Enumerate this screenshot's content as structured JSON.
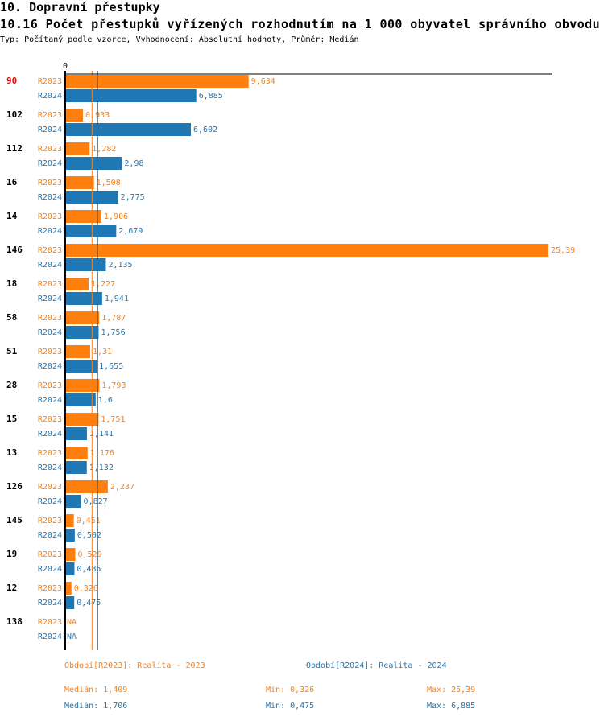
{
  "header": {
    "section": "10. Dopravní přestupky",
    "title": "10.16 Počet přestupků vyřízených rozhodnutím na 1 000 obyvatel správního obvodu",
    "subtitle": "Typ: Počítaný podle vzorce, Vyhodnocení: Absolutní hodnoty, Průměr: Medián"
  },
  "colors": {
    "r2023": "#ff7f0e",
    "r2024": "#1f77b4",
    "highlight": "#ff0000"
  },
  "chart_data": {
    "type": "bar",
    "orientation": "horizontal",
    "axis_zero_label": "0",
    "series_names": [
      "R2023",
      "R2024"
    ],
    "categories": [
      "90",
      "102",
      "112",
      "16",
      "14",
      "146",
      "18",
      "58",
      "51",
      "28",
      "15",
      "13",
      "126",
      "145",
      "19",
      "12",
      "138"
    ],
    "highlighted_category": "90",
    "series": [
      {
        "name": "R2023",
        "values": [
          "9,634",
          "0,933",
          "1,282",
          "1,508",
          "1,906",
          "25,39",
          "1,227",
          "1,787",
          "1,31",
          "1,793",
          "1,751",
          "1,176",
          "2,237",
          "0,451",
          "0,529",
          "0,326",
          "NA"
        ]
      },
      {
        "name": "R2024",
        "values": [
          "6,885",
          "6,602",
          "2,98",
          "2,775",
          "2,679",
          "2,135",
          "1,941",
          "1,756",
          "1,655",
          "1,6",
          "1,141",
          "1,132",
          "0,827",
          "0,502",
          "0,485",
          "0,475",
          "NA"
        ]
      }
    ],
    "median_lines": [
      1.409,
      1.706
    ]
  },
  "legend": {
    "r2023": "Období[R2023]: Realita - 2023",
    "r2024": "Období[R2024]: Realita - 2024"
  },
  "stats": {
    "r2023": {
      "median": "Medián: 1,409",
      "min": "Min: 0,326",
      "max": "Max: 25,39"
    },
    "r2024": {
      "median": "Medián: 1,706",
      "min": "Min: 0,475",
      "max": "Max: 6,885"
    }
  }
}
